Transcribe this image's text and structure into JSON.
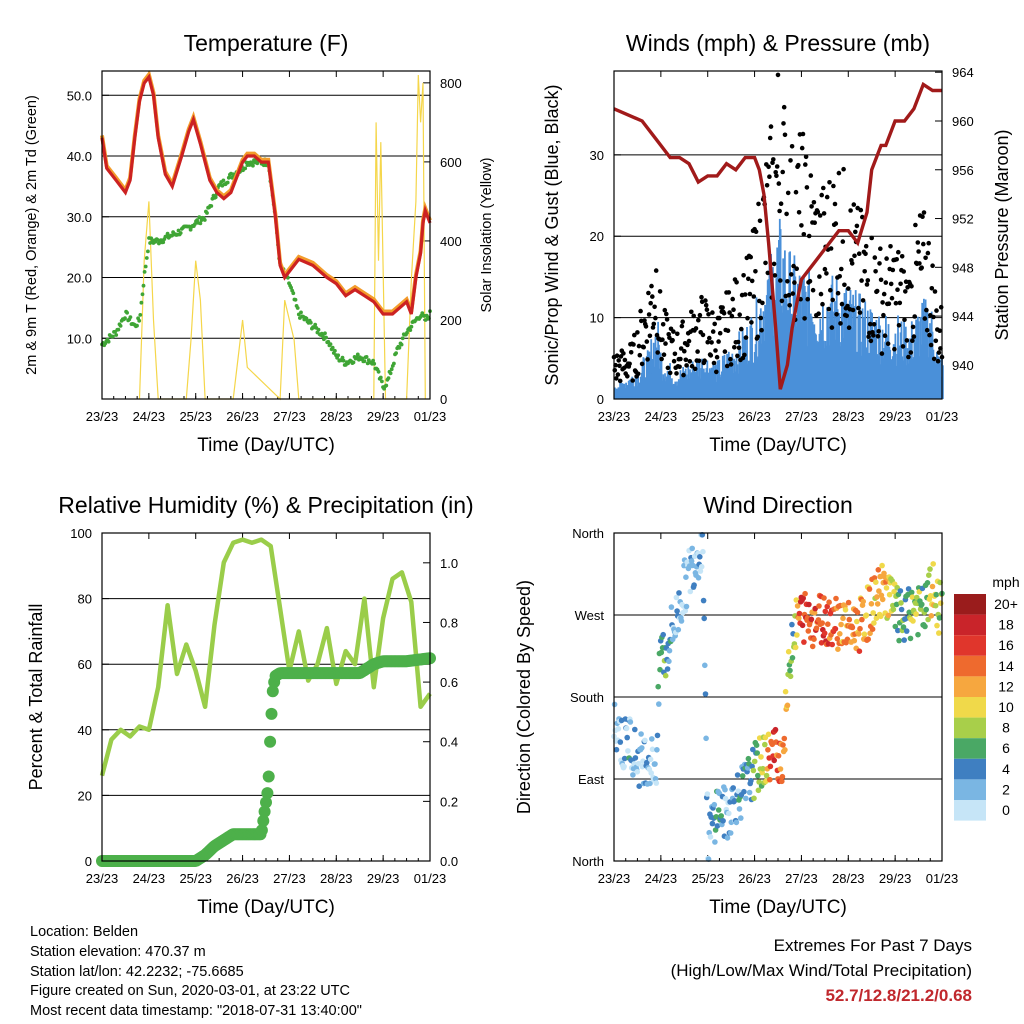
{
  "info": {
    "location": "Location: Belden",
    "elevation": "Station elevation: 470.37 m",
    "latlon": "Station lat/lon: 42.2232; -75.6685",
    "created": "Figure created on Sun, 2020-03-01, at 23:22 UTC",
    "recent": "Most recent data timestamp: \"2018-07-31 13:40:00\""
  },
  "extremes": {
    "title": "Extremes For Past 7 Days",
    "subtitle": "(High/Low/Max Wind/Total Precipitation)",
    "values": "52.7/12.8/21.2/0.68"
  },
  "colors": {
    "temp_red": "#cc2222",
    "temp_orange": "#f39c2b",
    "dewpoint_green": "#3fa535",
    "solar_yellow": "#f5d64a",
    "wind_blue": "#4a90d9",
    "gust_black": "#000000",
    "pressure_maroon": "#a11a1a",
    "rh_lightgreen": "#9acd4a",
    "precip_green": "#4db04a"
  },
  "chart_data": [
    {
      "type": "line",
      "title": "Temperature (F)",
      "xlabel": "Time (Day/UTC)",
      "ylabel": "2m & 9m T (Red, Orange) & 2m Td (Green)",
      "y2label": "Solar Insolation (Yellow)",
      "x_ticks": [
        "23/23",
        "24/23",
        "25/23",
        "26/23",
        "27/23",
        "28/23",
        "29/23",
        "01/23"
      ],
      "y_ticks": [
        "10.0",
        "20.0",
        "30.0",
        "40.0",
        "50.0"
      ],
      "y2_ticks": [
        "0",
        "200",
        "400",
        "600",
        "800"
      ],
      "xlim": [
        0,
        7
      ],
      "ylim": [
        0,
        54
      ],
      "y2lim": [
        0,
        830
      ],
      "grid": true,
      "series": [
        {
          "name": "2m T",
          "x": [
            0,
            0.1,
            0.3,
            0.5,
            0.6,
            0.7,
            0.8,
            0.9,
            1.0,
            1.1,
            1.2,
            1.35,
            1.5,
            1.7,
            1.85,
            1.95,
            2.1,
            2.3,
            2.45,
            2.6,
            2.75,
            2.9,
            3.0,
            3.1,
            3.25,
            3.4,
            3.55,
            3.7,
            3.8,
            3.9,
            4.0,
            4.2,
            4.5,
            4.8,
            5.0,
            5.2,
            5.4,
            5.6,
            5.8,
            6.0,
            6.2,
            6.35,
            6.5,
            6.6,
            6.7,
            6.8,
            6.85,
            6.9,
            7.0
          ],
          "y": [
            43,
            38,
            36,
            34,
            36,
            43,
            49,
            52,
            53,
            50,
            43,
            37,
            35,
            40,
            44,
            46,
            42,
            36,
            34,
            33,
            34,
            37,
            39,
            40,
            40,
            39,
            39,
            30,
            22,
            20,
            21,
            23,
            22,
            20,
            19,
            17,
            18,
            17,
            16,
            14,
            14,
            15,
            16,
            14,
            20,
            24,
            29,
            31,
            29
          ]
        },
        {
          "name": "Solar Insolation",
          "axis": "y2",
          "x": [
            0.8,
            0.9,
            1.0,
            1.1,
            1.2,
            1.8,
            1.9,
            2.0,
            2.1,
            2.2,
            2.8,
            2.9,
            3.0,
            3.1,
            3.8,
            3.9,
            4.0,
            4.1,
            4.2,
            5.8,
            5.85,
            5.9,
            5.95,
            6.05,
            6.5,
            6.6,
            6.7,
            6.75,
            6.8,
            6.85,
            6.9
          ],
          "y": [
            0,
            350,
            500,
            200,
            0,
            0,
            150,
            350,
            250,
            0,
            0,
            100,
            200,
            80,
            0,
            250,
            200,
            150,
            0,
            0,
            700,
            350,
            650,
            0,
            0,
            300,
            500,
            820,
            700,
            800,
            0
          ]
        },
        {
          "name": "2m Td",
          "x": [
            0,
            0.3,
            0.5,
            0.7,
            0.8,
            0.9,
            1.0,
            1.2,
            1.5,
            1.8,
            2.0,
            2.2,
            2.5,
            2.8,
            3.0,
            3.1,
            3.25,
            3.4,
            3.55,
            3.7,
            3.8,
            4.0,
            4.2,
            4.5,
            4.8,
            5.0,
            5.2,
            5.5,
            5.8,
            6.0,
            6.1,
            6.3,
            6.5,
            6.7,
            6.8,
            6.9,
            7.0
          ],
          "y": [
            9,
            11,
            14,
            12,
            13,
            20,
            26,
            26,
            27,
            28,
            29,
            30,
            35,
            37,
            38,
            39,
            39,
            39,
            39,
            30,
            22,
            19,
            14,
            12,
            10,
            7,
            6,
            7,
            6,
            2,
            3,
            8,
            11,
            13,
            14,
            13,
            14
          ]
        }
      ]
    },
    {
      "type": "scatter",
      "title": "Winds (mph) & Pressure (mb)",
      "xlabel": "Time (Day/UTC)",
      "ylabel": "Sonic/Prop Wind & Gust (Blue, Black)",
      "y2label": "Station Pressure (Maroon)",
      "x_ticks": [
        "23/23",
        "24/23",
        "25/23",
        "26/23",
        "27/23",
        "28/23",
        "29/23",
        "01/23"
      ],
      "y_ticks": [
        "0",
        "10",
        "20",
        "30"
      ],
      "y2_ticks": [
        "940",
        "944",
        "948",
        "952",
        "956",
        "960",
        "964"
      ],
      "xlim": [
        0,
        7
      ],
      "ylim": [
        0,
        40.3
      ],
      "y2lim": [
        937.2,
        964.1
      ],
      "grid": true,
      "series": [
        {
          "name": "Station Pressure",
          "axis": "y2",
          "type": "line",
          "x": [
            0,
            0.3,
            0.6,
            0.9,
            1.2,
            1.4,
            1.6,
            1.8,
            2.0,
            2.2,
            2.4,
            2.6,
            2.8,
            3.0,
            3.1,
            3.2,
            3.3,
            3.45,
            3.55,
            3.7,
            3.8,
            3.9,
            4.0,
            4.3,
            4.6,
            4.8,
            5.0,
            5.2,
            5.4,
            5.5,
            5.6,
            5.7,
            5.8,
            6.0,
            6.2,
            6.4,
            6.6,
            6.8,
            7.0
          ],
          "y": [
            961,
            960.5,
            960,
            958.5,
            957,
            957,
            956.5,
            955,
            955.5,
            955.5,
            956.5,
            956,
            957,
            957,
            956,
            954,
            950,
            943,
            938,
            940,
            943,
            945,
            947,
            948.5,
            950,
            951,
            951,
            950,
            952.5,
            956,
            957,
            958,
            958,
            960,
            960,
            961,
            963,
            962.5,
            962.5
          ]
        },
        {
          "name": "Gust",
          "x": [
            0.1,
            0.4,
            0.7,
            0.9,
            1.0,
            1.3,
            1.6,
            1.9,
            2.2,
            2.5,
            2.8,
            3.0,
            3.2,
            3.4,
            3.5,
            3.6,
            3.7,
            3.8,
            4.0,
            4.2,
            4.4,
            4.6,
            4.8,
            5.0,
            5.2,
            5.5,
            5.8,
            6.0,
            6.3,
            6.5,
            6.7,
            6.8,
            6.9
          ],
          "y": [
            5,
            6,
            12,
            18,
            10,
            7,
            9,
            11,
            9,
            12,
            14,
            18,
            25,
            30,
            36,
            33,
            30,
            27,
            28,
            25,
            22,
            24,
            26,
            22,
            20,
            18,
            15,
            17,
            14,
            20,
            19,
            15,
            10
          ]
        },
        {
          "name": "Wind",
          "x": [
            0.1,
            0.4,
            0.7,
            0.9,
            1.0,
            1.3,
            1.6,
            1.9,
            2.2,
            2.5,
            2.8,
            3.0,
            3.2,
            3.4,
            3.5,
            3.6,
            3.7,
            3.8,
            4.0,
            4.2,
            4.4,
            4.6,
            4.8,
            5.0,
            5.2,
            5.5,
            5.8,
            6.0,
            6.3,
            6.5,
            6.7,
            6.8,
            6.9
          ],
          "y": [
            2,
            3,
            5,
            9,
            5,
            3,
            4,
            5,
            4,
            6,
            8,
            10,
            14,
            17,
            19,
            18,
            16,
            15,
            14,
            13,
            12,
            13,
            13,
            12,
            11,
            10,
            9,
            9,
            8,
            10,
            11,
            9,
            5
          ]
        }
      ]
    },
    {
      "type": "line",
      "title": "Relative Humidity (%) & Precipitation (in)",
      "xlabel": "Time (Day/UTC)",
      "ylabel": "Percent & Total Rainfall",
      "x_ticks": [
        "23/23",
        "24/23",
        "25/23",
        "26/23",
        "27/23",
        "28/23",
        "29/23",
        "01/23"
      ],
      "y_ticks": [
        "0",
        "20",
        "40",
        "60",
        "80",
        "100"
      ],
      "y2_ticks": [
        "0.0",
        "0.2",
        "0.4",
        "0.6",
        "0.8",
        "1.0"
      ],
      "xlim": [
        0,
        7
      ],
      "ylim": [
        0,
        100
      ],
      "y2lim": [
        0,
        1.1
      ],
      "grid": true,
      "series": [
        {
          "name": "RH",
          "x": [
            0,
            0.2,
            0.4,
            0.6,
            0.8,
            1.0,
            1.2,
            1.4,
            1.6,
            1.8,
            2.0,
            2.2,
            2.4,
            2.6,
            2.8,
            3.0,
            3.2,
            3.4,
            3.6,
            3.8,
            4.0,
            4.2,
            4.4,
            4.6,
            4.8,
            5.0,
            5.2,
            5.4,
            5.6,
            5.8,
            6.0,
            6.2,
            6.4,
            6.6,
            6.8,
            7.0
          ],
          "y": [
            26,
            37,
            40,
            38,
            41,
            40,
            53,
            78,
            57,
            66,
            58,
            47,
            72,
            91,
            97,
            98,
            97,
            98,
            96,
            77,
            58,
            70,
            55,
            60,
            71,
            54,
            64,
            60,
            80,
            53,
            74,
            86,
            88,
            79,
            47,
            51
          ]
        },
        {
          "name": "Precipitation",
          "axis": "y2",
          "x": [
            0,
            1.0,
            2.0,
            2.2,
            2.4,
            2.6,
            2.8,
            3.0,
            3.2,
            3.4,
            3.55,
            3.6,
            3.65,
            3.7,
            3.8,
            4.0,
            4.5,
            5.0,
            5.5,
            5.8,
            6.0,
            6.5,
            7.0
          ],
          "y": [
            0,
            0,
            0,
            0.02,
            0.05,
            0.07,
            0.09,
            0.09,
            0.09,
            0.09,
            0.25,
            0.45,
            0.58,
            0.62,
            0.63,
            0.63,
            0.63,
            0.63,
            0.63,
            0.66,
            0.67,
            0.67,
            0.68
          ]
        }
      ]
    },
    {
      "type": "scatter",
      "title": "Wind Direction",
      "xlabel": "Time (Day/UTC)",
      "ylabel": "Direction (Colored By Speed)",
      "x_ticks": [
        "23/23",
        "24/23",
        "25/23",
        "26/23",
        "27/23",
        "28/23",
        "29/23",
        "01/23"
      ],
      "y_ticks": [
        "North",
        "East",
        "South",
        "West",
        "North"
      ],
      "xlim": [
        0,
        7
      ],
      "ylim": [
        0,
        360
      ],
      "legend_title": "mph",
      "legend_labels": [
        "20+",
        "18",
        "16",
        "14",
        "12",
        "10",
        "8",
        "6",
        "4",
        "2",
        "0"
      ],
      "legend_colors": [
        "#9a1c1c",
        "#c9242a",
        "#e0362c",
        "#ee6a2e",
        "#f6a73f",
        "#f0d94a",
        "#a8cf4a",
        "#4aa865",
        "#3f7fc1",
        "#7ab6e3",
        "#c6e5f7"
      ],
      "legend_position": "right",
      "grid": true,
      "series": [
        {
          "name": "Direction",
          "x": [
            0.1,
            0.2,
            0.3,
            0.5,
            0.7,
            0.9,
            1.0,
            1.1,
            1.2,
            1.3,
            1.5,
            1.7,
            1.9,
            2.0,
            2.1,
            2.2,
            2.4,
            2.6,
            2.8,
            3.0,
            3.2,
            3.4,
            3.6,
            3.8,
            4.0,
            4.2,
            4.5,
            4.8,
            5.0,
            5.3,
            5.6,
            5.8,
            6.0,
            6.2,
            6.4,
            6.6,
            6.8,
            6.9
          ],
          "y": [
            150,
            120,
            140,
            110,
            115,
            105,
            240,
            220,
            250,
            260,
            300,
            330,
            350,
            20,
            40,
            60,
            50,
            70,
            80,
            100,
            110,
            120,
            115,
            250,
            270,
            265,
            268,
            262,
            255,
            260,
            290,
            300,
            275,
            260,
            280,
            270,
            300,
            280
          ],
          "speed": [
            2,
            2,
            3,
            2,
            2,
            1,
            7,
            5,
            3,
            2,
            1,
            2,
            2,
            1,
            3,
            5,
            2,
            3,
            4,
            6,
            9,
            16,
            14,
            6,
            17,
            15,
            16,
            13,
            12,
            13,
            11,
            12,
            8,
            4,
            9,
            6,
            10,
            8
          ]
        }
      ]
    }
  ]
}
